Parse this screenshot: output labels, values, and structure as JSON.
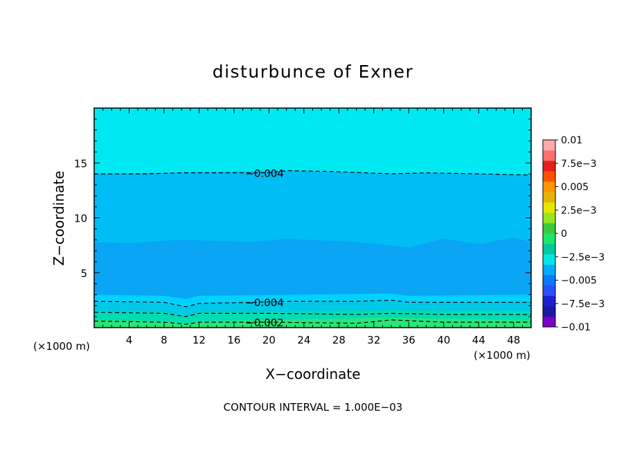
{
  "chart_data": {
    "type": "contour",
    "title": "disturbunce of Exner",
    "xlabel": "X−coordinate",
    "ylabel": "Z−coordinate",
    "x_unit_left": "(×1000 m)",
    "x_unit_right": "(×1000 m)",
    "footer": "CONTOUR INTERVAL = 1.000E−03",
    "xlim": [
      0,
      50
    ],
    "ylim": [
      0,
      20
    ],
    "x_ticks": [
      4,
      8,
      12,
      16,
      20,
      24,
      28,
      32,
      36,
      40,
      44,
      48
    ],
    "y_ticks": [
      5,
      10,
      15
    ],
    "colorbar": {
      "range": [
        -0.01,
        0.01
      ],
      "labels": [
        {
          "value": 0.01,
          "text": "0.01"
        },
        {
          "value": 0.0075,
          "text": "7.5e−3"
        },
        {
          "value": 0.005,
          "text": "0.005"
        },
        {
          "value": 0.0025,
          "text": "2.5e−3"
        },
        {
          "value": 0,
          "text": "0"
        },
        {
          "value": -0.0025,
          "text": "−2.5e−3"
        },
        {
          "value": -0.005,
          "text": "−0.005"
        },
        {
          "value": -0.0075,
          "text": "−7.5e−3"
        },
        {
          "value": -0.01,
          "text": "−0.01"
        }
      ],
      "colors": [
        "#7d00c8",
        "#1a1aa0",
        "#1f1fd2",
        "#2a4fff",
        "#0a78ff",
        "#00aaff",
        "#00e6e6",
        "#00c8a0",
        "#1ee664",
        "#3cc83c",
        "#96e61e",
        "#e6e600",
        "#e6b400",
        "#ff9600",
        "#ff5000",
        "#e61e1e",
        "#ff6e6e",
        "#ffaaaa"
      ]
    },
    "fill_bands": [
      {
        "name": "low-green",
        "color": "#28e67a",
        "z_top_base": 0.7
      },
      {
        "name": "teal",
        "color": "#00dcb4",
        "z_top_base": 1.5
      },
      {
        "name": "aqua",
        "color": "#00c8e6",
        "z_top_base": 2.3
      },
      {
        "name": "cyan-low",
        "color": "#00d2ff",
        "z_top_base": 3.0
      },
      {
        "name": "blue",
        "color": "#0aa5f5",
        "z_top_base": 7.8
      },
      {
        "name": "light-blue",
        "color": "#00bdf5",
        "z_top_base": 14.0
      },
      {
        "name": "cyan-top",
        "color": "#00e8f2",
        "z_top_base": 20.0
      }
    ],
    "contours": [
      {
        "value": -0.004,
        "label": "−0.004",
        "points": [
          [
            0,
            14.0
          ],
          [
            6,
            14.0
          ],
          [
            10,
            14.1
          ],
          [
            16,
            14.1
          ],
          [
            20,
            14.1
          ],
          [
            22,
            14.3
          ],
          [
            28,
            14.2
          ],
          [
            34,
            14.0
          ],
          [
            38,
            14.1
          ],
          [
            44,
            14.0
          ],
          [
            50,
            13.9
          ]
        ],
        "label_x": 19.5
      },
      {
        "value": -0.004,
        "label": "−0.004",
        "points": [
          [
            0,
            2.4
          ],
          [
            8,
            2.3
          ],
          [
            10.5,
            1.9
          ],
          [
            12,
            2.2
          ],
          [
            18,
            2.3
          ],
          [
            22,
            2.4
          ],
          [
            30,
            2.4
          ],
          [
            34,
            2.5
          ],
          [
            36,
            2.3
          ],
          [
            42,
            2.3
          ],
          [
            50,
            2.3
          ]
        ],
        "label_x": 19.5
      },
      {
        "value": -0.003,
        "label": "",
        "points": [
          [
            0,
            1.4
          ],
          [
            8,
            1.3
          ],
          [
            10.5,
            1.0
          ],
          [
            12,
            1.3
          ],
          [
            20,
            1.3
          ],
          [
            30,
            1.2
          ],
          [
            34,
            1.3
          ],
          [
            40,
            1.2
          ],
          [
            50,
            1.2
          ]
        ],
        "label_x": null
      },
      {
        "value": -0.002,
        "label": "−0.002",
        "points": [
          [
            0,
            0.6
          ],
          [
            8,
            0.5
          ],
          [
            10.5,
            0.3
          ],
          [
            12,
            0.5
          ],
          [
            20,
            0.5
          ],
          [
            30,
            0.4
          ],
          [
            34,
            0.7
          ],
          [
            40,
            0.5
          ],
          [
            50,
            0.5
          ]
        ],
        "label_x": 19.5
      }
    ]
  }
}
